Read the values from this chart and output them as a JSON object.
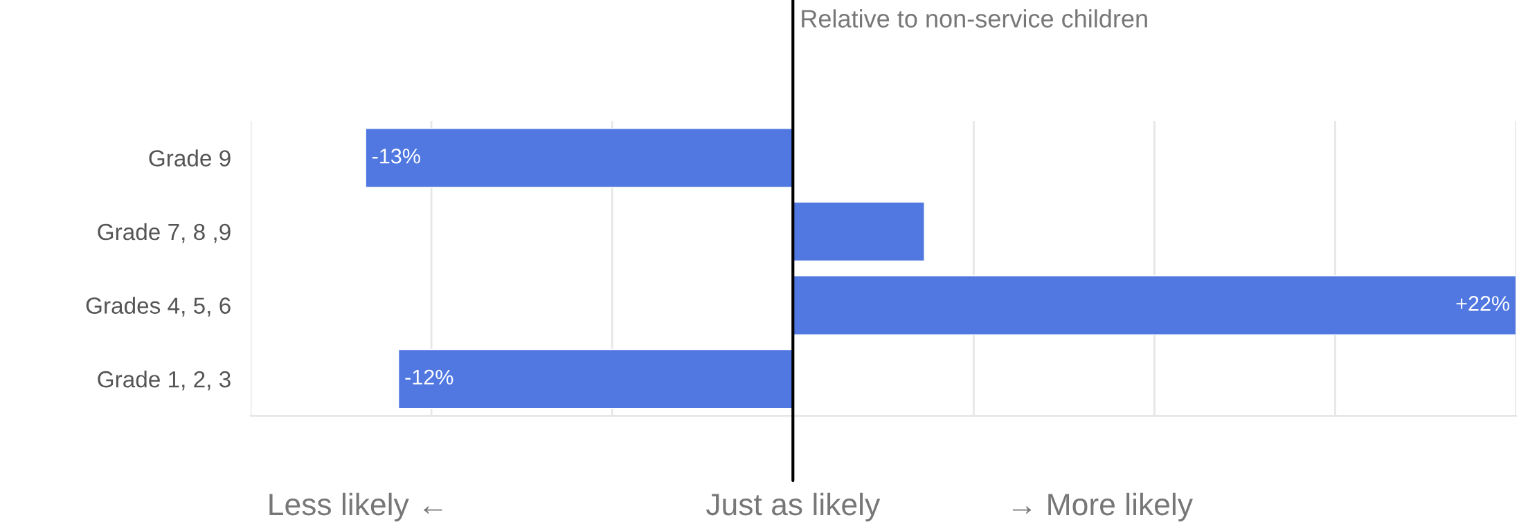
{
  "chart_data": {
    "type": "bar",
    "orientation": "horizontal",
    "categories": [
      "Grade 9",
      "Grade 7, 8 ,9",
      "Grades 4, 5, 6",
      "Grade 1, 2, 3"
    ],
    "values": [
      -13,
      4,
      22,
      -12
    ],
    "value_labels": [
      "-13%",
      null,
      "+22%",
      "-12%"
    ],
    "color": "#5078e0",
    "xlim": [
      -16.5,
      22
    ],
    "xticks": [
      {
        "value": -16.5,
        "label": null
      },
      {
        "value": -11,
        "label": null
      },
      {
        "value": -5.5,
        "label": null
      },
      {
        "value": 0,
        "label": null
      },
      {
        "value": 5.5,
        "label": null
      },
      {
        "value": 11,
        "label": null
      },
      {
        "value": 16.5,
        "label": null
      },
      {
        "value": 22,
        "label": null
      }
    ],
    "grid": "x",
    "ref_lines": [
      {
        "axis": "x",
        "value": 0,
        "label": "Just as likely",
        "color": "#000000"
      }
    ],
    "annotations": [
      "Relative to non-service children",
      "Less likely ←",
      "→ More likely"
    ]
  }
}
